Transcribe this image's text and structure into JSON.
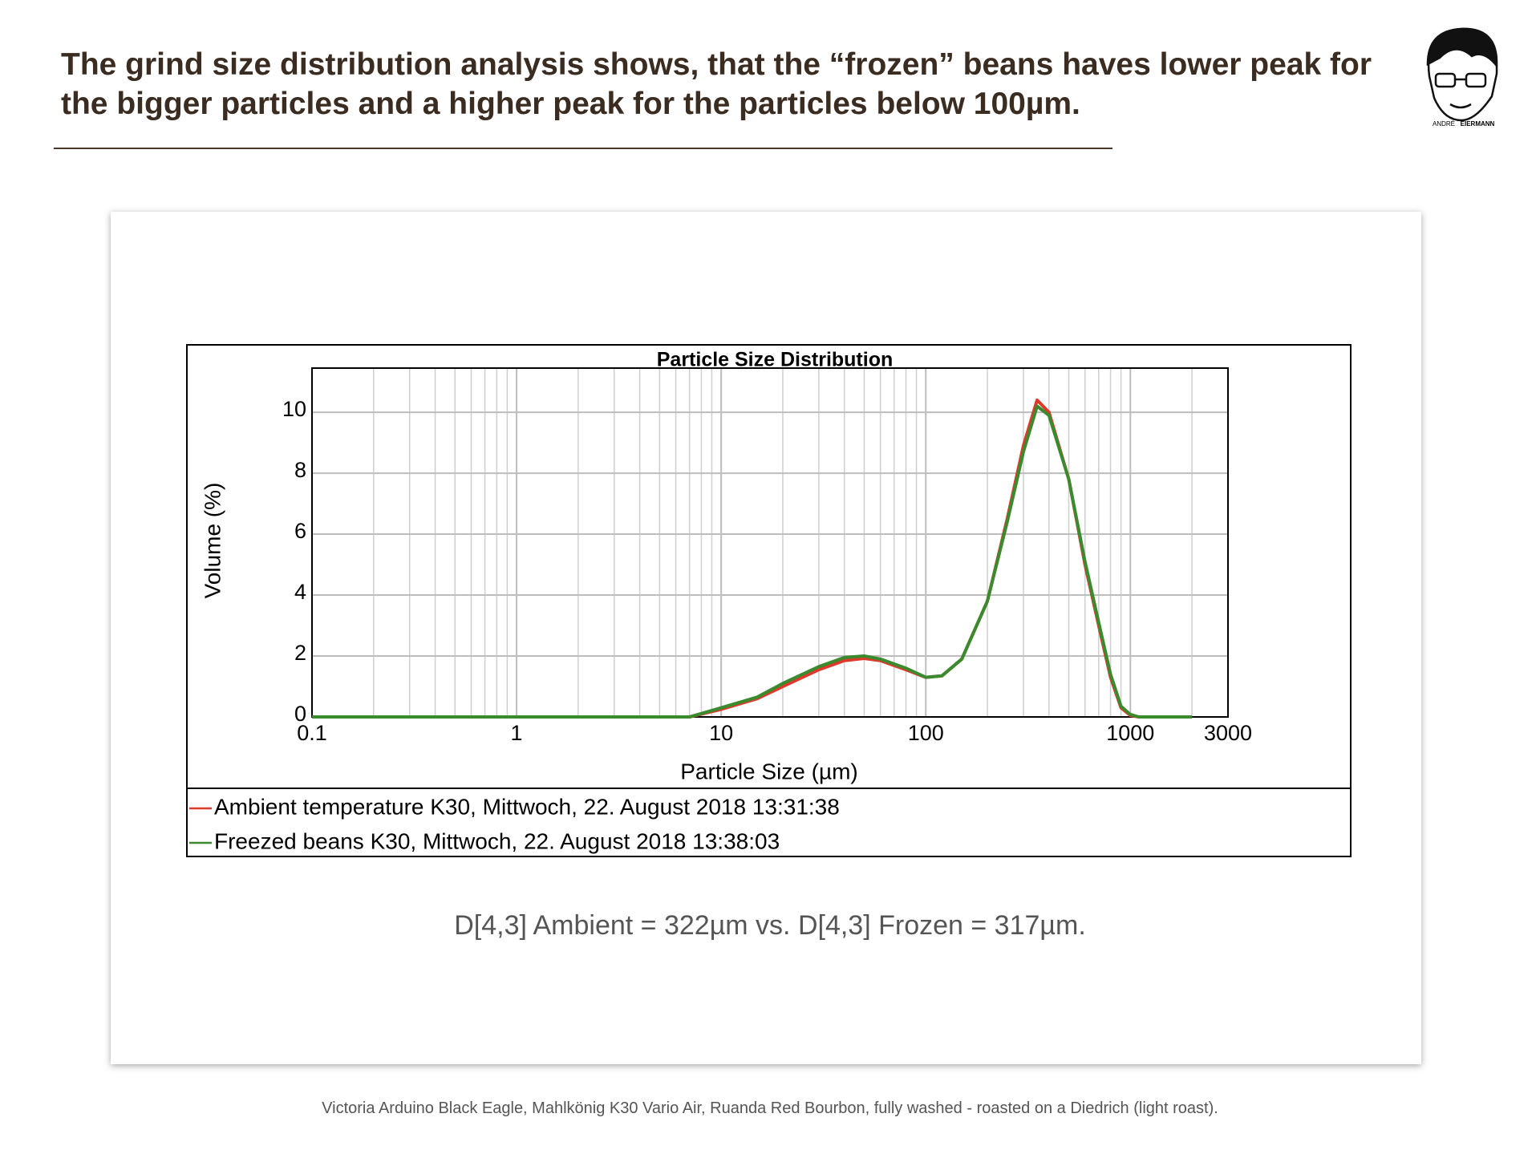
{
  "header": {
    "title": "The grind size distribution analysis shows, that the “frozen” beans haves lower peak for the bigger particles and a higher peak for the particles below 100µm."
  },
  "logo": {
    "first": "ANDRÉ",
    "last": "EIERMANN"
  },
  "chart_data": {
    "type": "line",
    "title": "Particle Size Distribution",
    "x_label": "Particle Size (µm)",
    "y_label": "Volume (%)",
    "x_scale": "log",
    "xlim": [
      0.1,
      3000
    ],
    "xticks": [
      0.1,
      1,
      10,
      100,
      1000,
      3000
    ],
    "ylim": [
      0,
      11.45
    ],
    "yticks": [
      0,
      2,
      4,
      6,
      8,
      10
    ],
    "grid": true,
    "minor_grid": true,
    "legend": "bottom",
    "x": [
      0.1,
      7,
      10,
      15,
      20,
      30,
      40,
      50,
      60,
      80,
      100,
      120,
      150,
      200,
      250,
      300,
      350,
      400,
      500,
      600,
      700,
      800,
      900,
      1000,
      1100,
      2000
    ],
    "series": [
      {
        "name": "Ambient temperature K30, Mittwoch, 22. August 2018 13:31:38",
        "color": "#e0392b",
        "values": [
          0,
          0,
          0.25,
          0.6,
          1.0,
          1.55,
          1.85,
          1.92,
          1.85,
          1.55,
          1.3,
          1.35,
          1.9,
          3.8,
          6.5,
          8.9,
          10.4,
          10.0,
          7.8,
          5.0,
          3.0,
          1.3,
          0.3,
          0.05,
          0,
          0
        ]
      },
      {
        "name": "Freezed beans K30, Mittwoch, 22. August 2018 13:38:03",
        "color": "#3a8a2e",
        "values": [
          0,
          0,
          0.3,
          0.65,
          1.1,
          1.65,
          1.95,
          2.0,
          1.9,
          1.6,
          1.3,
          1.35,
          1.9,
          3.8,
          6.4,
          8.7,
          10.2,
          9.9,
          7.8,
          5.1,
          3.1,
          1.4,
          0.35,
          0.08,
          0,
          0
        ]
      }
    ]
  },
  "caption": "D[4,3] Ambient = 322µm vs. D[4,3] Frozen = 317µm.",
  "footer": "Victoria Arduino Black Eagle, Mahlkönig K30 Vario Air, Ruanda Red Bourbon, fully washed - roasted on a Diedrich (light roast)."
}
